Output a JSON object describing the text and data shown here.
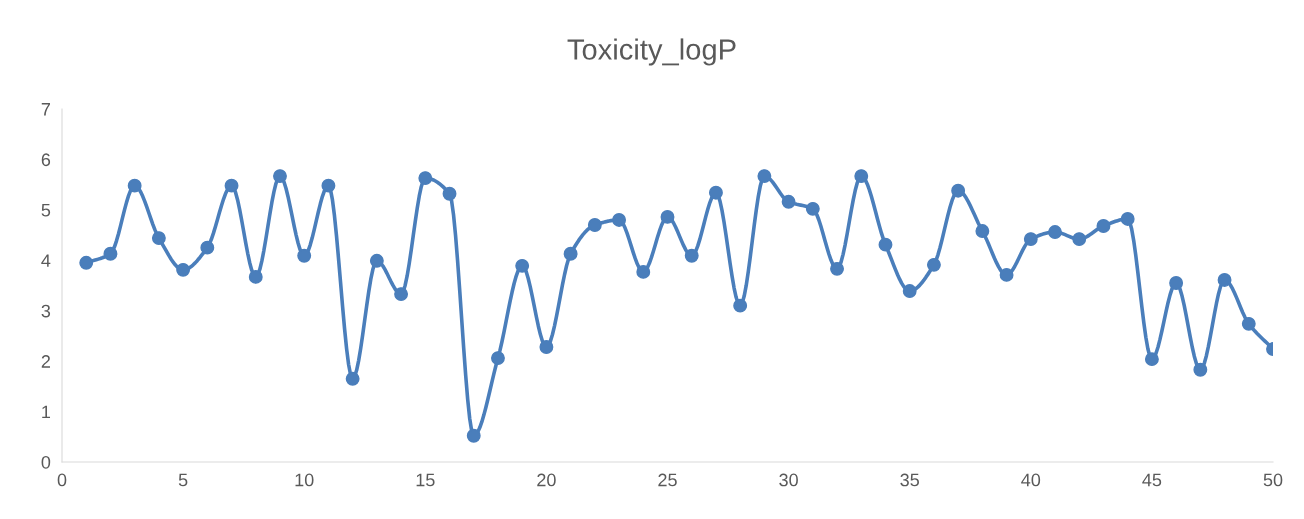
{
  "chart_data": {
    "type": "line",
    "title": "Toxicity_logP",
    "x": [
      1,
      2,
      3,
      4,
      5,
      6,
      7,
      8,
      9,
      10,
      11,
      12,
      13,
      14,
      15,
      16,
      17,
      18,
      19,
      20,
      21,
      22,
      23,
      24,
      25,
      26,
      27,
      28,
      29,
      30,
      31,
      32,
      33,
      34,
      35,
      36,
      37,
      38,
      39,
      40,
      41,
      42,
      43,
      44,
      45,
      46,
      47,
      48,
      49,
      50
    ],
    "series": [
      {
        "color": "#4a7ebb",
        "values": [
          3.95,
          4.13,
          5.48,
          4.44,
          3.81,
          4.25,
          5.48,
          3.67,
          5.67,
          4.09,
          5.48,
          1.65,
          3.99,
          3.33,
          5.63,
          5.32,
          0.52,
          2.06,
          3.89,
          2.28,
          4.13,
          4.7,
          4.8,
          3.77,
          4.86,
          4.09,
          5.34,
          3.1,
          5.67,
          5.16,
          5.02,
          3.83,
          5.67,
          4.31,
          3.39,
          3.91,
          5.38,
          4.58,
          3.71,
          4.42,
          4.56,
          4.42,
          4.68,
          4.82,
          2.04,
          3.55,
          1.83,
          3.61,
          2.74,
          2.24
        ]
      }
    ],
    "xlim": [
      0,
      50
    ],
    "xticks": [
      0,
      5,
      10,
      15,
      20,
      25,
      30,
      35,
      40,
      45,
      50
    ],
    "ylim": [
      0,
      7
    ],
    "yticks": [
      0,
      1,
      2,
      3,
      4,
      5,
      6,
      7
    ],
    "grid": false,
    "marker": "circle",
    "line_style": "solid"
  }
}
